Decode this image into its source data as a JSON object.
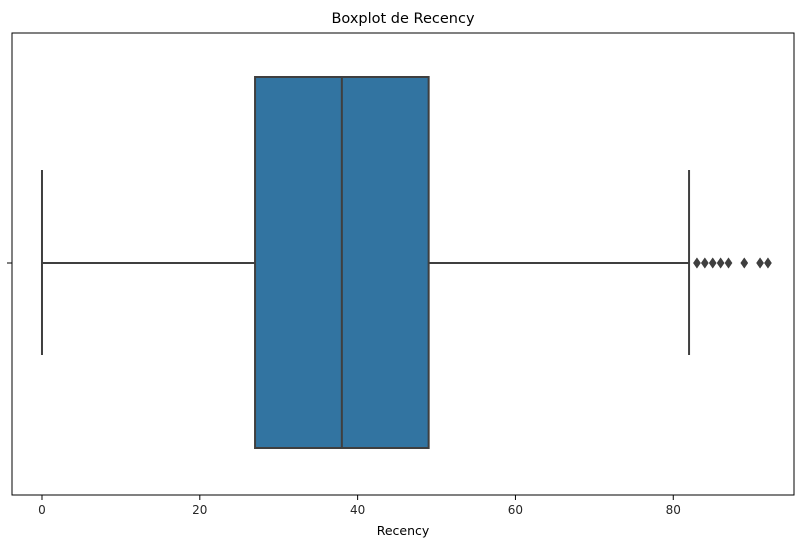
{
  "chart_data": {
    "type": "boxplot",
    "title": "Boxplot de Recency",
    "xlabel": "Recency",
    "ylabel": "",
    "orientation": "horizontal",
    "xlim": [
      -3.8,
      95.3
    ],
    "xticks": [
      0,
      20,
      40,
      60,
      80
    ],
    "grid": false,
    "legend": "none",
    "box": {
      "whisker_low": 0,
      "q1": 27,
      "median": 38,
      "q3": 49,
      "whisker_high": 82,
      "outliers": [
        83,
        84,
        85,
        86,
        87,
        89,
        91,
        92
      ]
    },
    "colors": {
      "box_fill": "#3274a1",
      "line": "#3f3f3f",
      "axis": "#000000"
    }
  }
}
